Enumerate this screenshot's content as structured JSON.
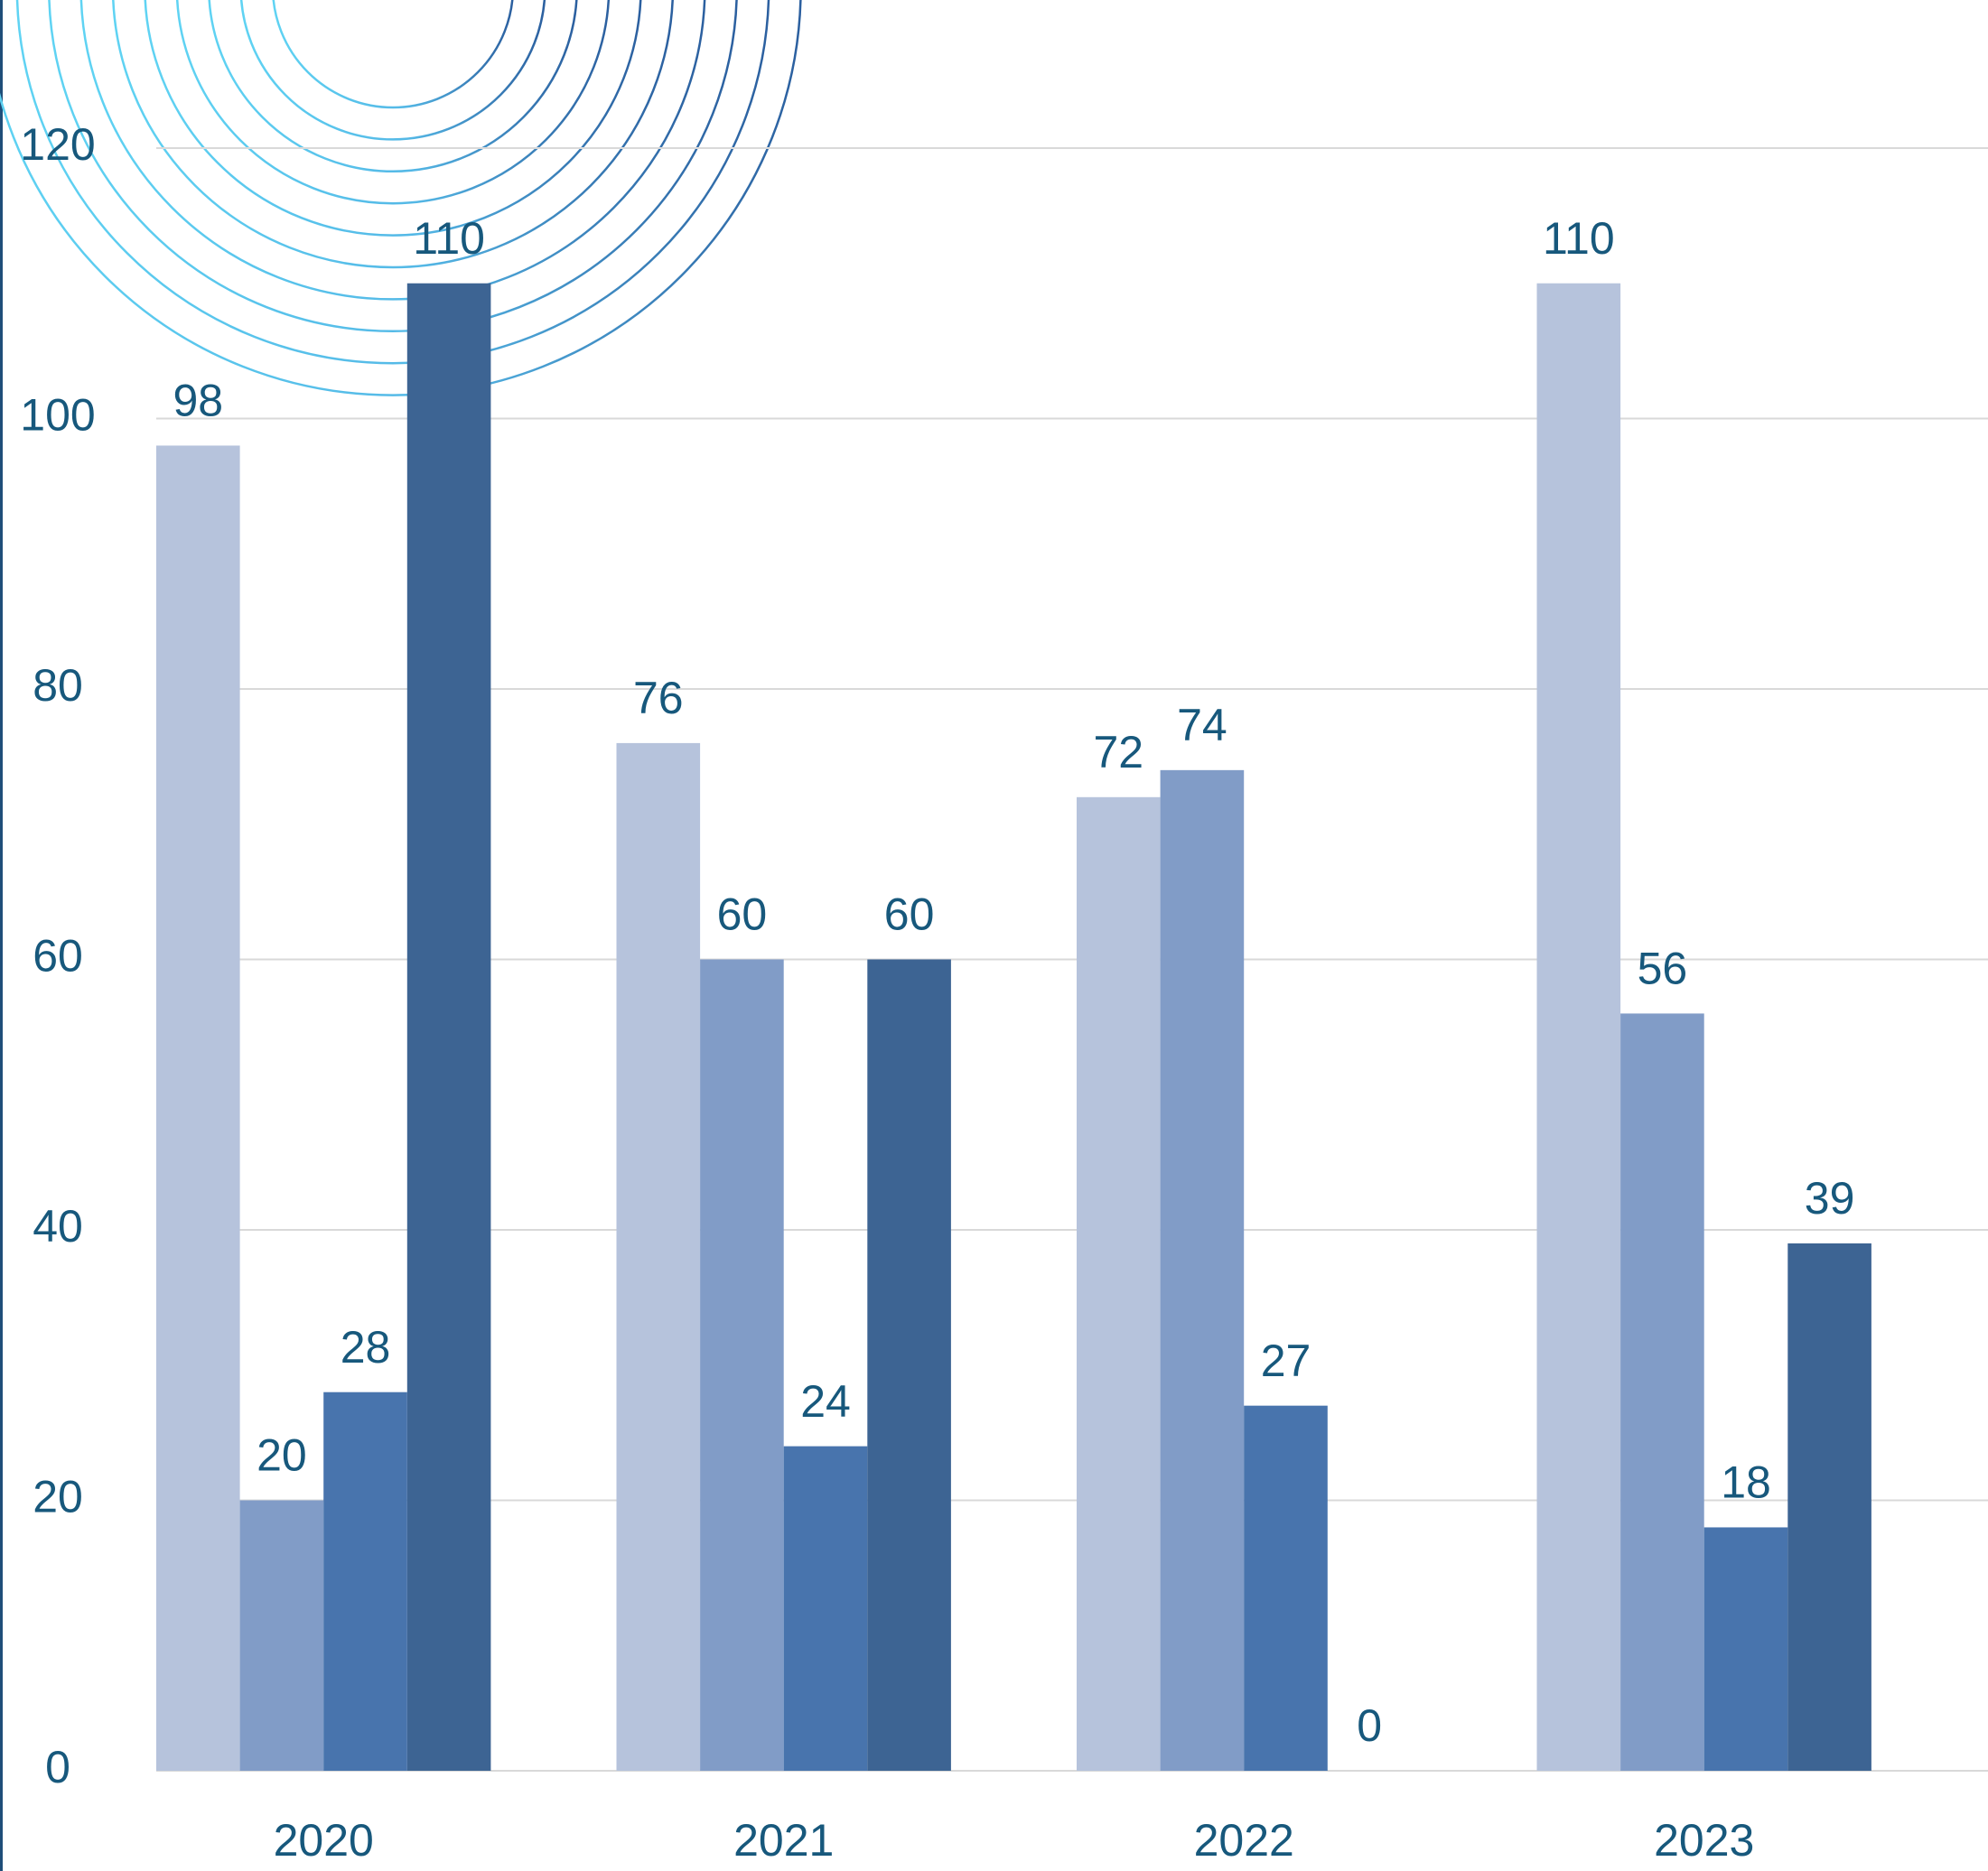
{
  "chart_data": {
    "type": "bar",
    "categories": [
      "2020",
      "2021",
      "2022",
      "2023"
    ],
    "series": [
      {
        "color": "#b6c3dc",
        "values": [
          98,
          76,
          72,
          110
        ]
      },
      {
        "color": "#819cc7",
        "values": [
          20,
          60,
          74,
          56
        ]
      },
      {
        "color": "#4874ad",
        "values": [
          28,
          24,
          27,
          18
        ]
      },
      {
        "color": "#3d6493",
        "values": [
          110,
          60,
          0,
          39
        ]
      }
    ],
    "ylim": [
      0,
      120
    ],
    "yticks": [
      0,
      20,
      40,
      60,
      80,
      100,
      120
    ],
    "grid": true
  }
}
